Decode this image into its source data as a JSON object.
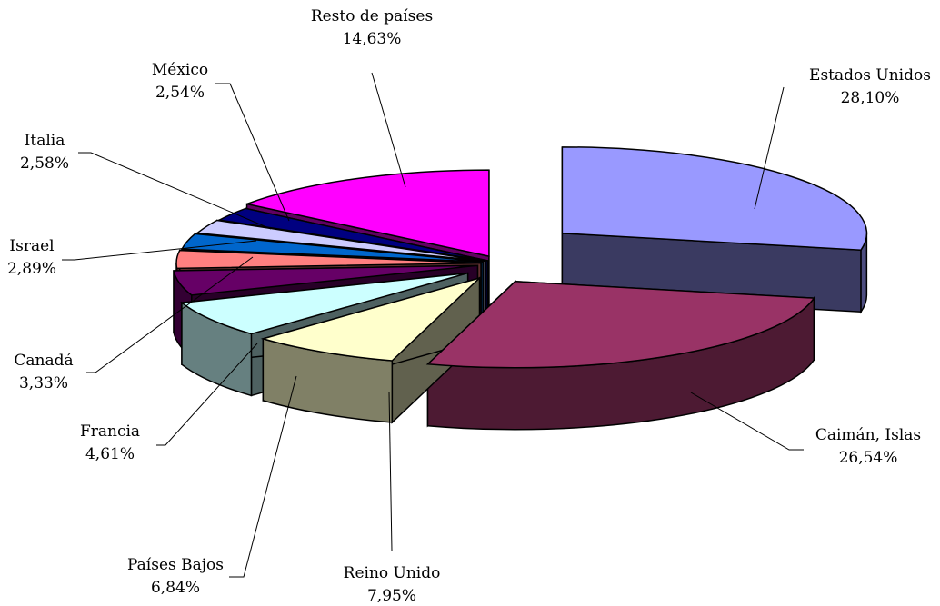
{
  "chart_data": {
    "type": "pie",
    "style": "3d-exploded",
    "title": "",
    "legend": "none",
    "slices": [
      {
        "label": "Estados Unidos",
        "value_label": "28,10%",
        "value": 28.1,
        "color": "#9999ff"
      },
      {
        "label": "Caimán, Islas",
        "value_label": "26,54%",
        "value": 26.54,
        "color": "#993366"
      },
      {
        "label": "Reino Unido",
        "value_label": "7,95%",
        "value": 7.95,
        "color": "#ffffcc"
      },
      {
        "label": "Países Bajos",
        "value_label": "6,84%",
        "value": 6.84,
        "color": "#ccffff"
      },
      {
        "label": "Francia",
        "value_label": "4,61%",
        "value": 4.61,
        "color": "#660066"
      },
      {
        "label": "Canadá",
        "value_label": "3,33%",
        "value": 3.33,
        "color": "#ff8080"
      },
      {
        "label": "Israel",
        "value_label": "2,89%",
        "value": 2.89,
        "color": "#0066cc"
      },
      {
        "label": "Italia",
        "value_label": "2,58%",
        "value": 2.58,
        "color": "#ccccff"
      },
      {
        "label": "México",
        "value_label": "2,54%",
        "value": 2.54,
        "color": "#000080"
      },
      {
        "label": "Resto de países",
        "value_label": "14,63%",
        "value": 14.63,
        "color": "#ff00ff"
      }
    ]
  }
}
